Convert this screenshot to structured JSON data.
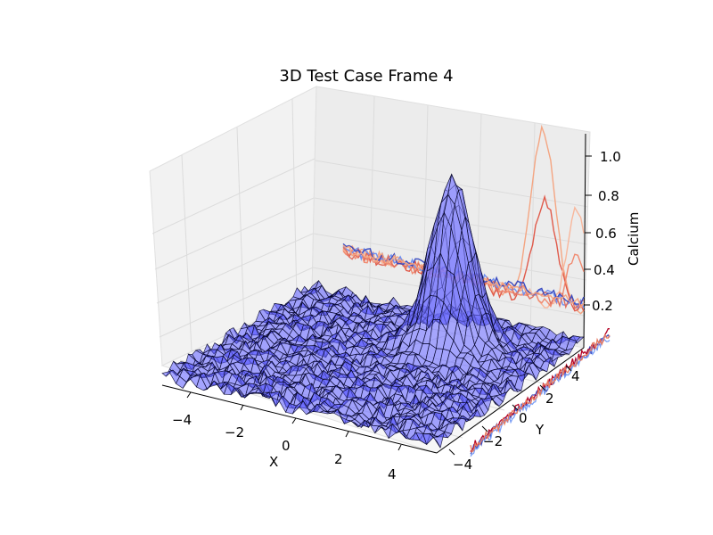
{
  "chart_data": {
    "type": "surface3d",
    "title": "3D Test Case Frame 4",
    "xlabel": "X",
    "ylabel": "Y",
    "zlabel": "Calcium",
    "xlim": [
      -5,
      5
    ],
    "ylim": [
      -5,
      5
    ],
    "zlim": [
      0,
      1.1
    ],
    "x_ticks": [
      "−4",
      "−2",
      "0",
      "2",
      "4"
    ],
    "y_ticks": [
      "−4",
      "−2",
      "0",
      "2",
      "4"
    ],
    "z_ticks": [
      "0.2",
      "0.4",
      "0.6",
      "0.8",
      "1.0"
    ],
    "surface": {
      "description": "noisy baseline near 0 with gaussian peak",
      "baseline": 0.05,
      "noise_amplitude": 0.04,
      "peak_center": [
        1.5,
        2.5
      ],
      "peak_height": 1.0,
      "peak_sigma": 0.7,
      "face_color": "#3f3fff",
      "edge_color": "#000022"
    },
    "projections": {
      "x_wall": "contour lines (coolwarm) showing peak ~1.0 and secondary ~0.65",
      "y_floor": "noisy multicolour lines near base"
    },
    "grid": true
  }
}
